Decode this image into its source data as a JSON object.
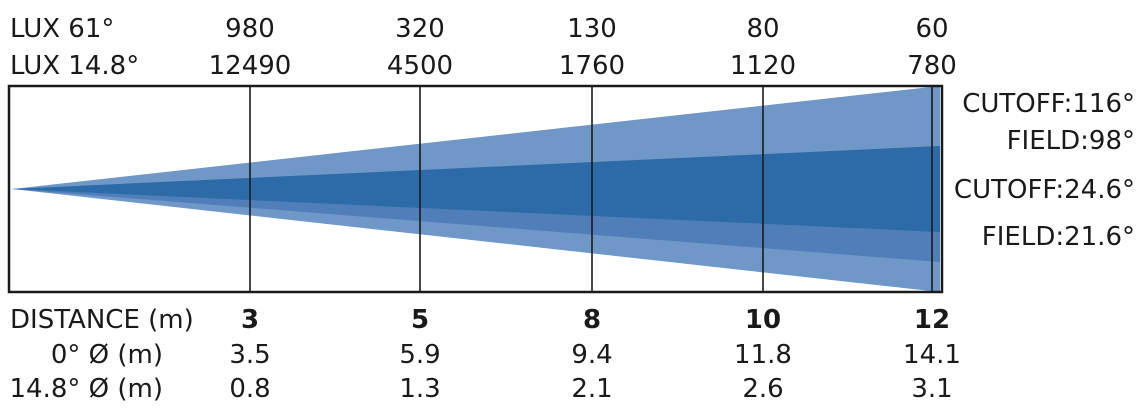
{
  "header_rows": [
    {
      "label": "LUX  61°",
      "values": [
        "980",
        "320",
        "130",
        "80",
        "60"
      ]
    },
    {
      "label": "LUX  14.8°",
      "values": [
        "12490",
        "4500",
        "1760",
        "1120",
        "780"
      ]
    }
  ],
  "beam_labels": {
    "outer_cutoff": "CUTOFF:116°",
    "outer_field": "FIELD:98°",
    "inner_cutoff": "CUTOFF:24.6°",
    "inner_field": "FIELD:21.6°"
  },
  "distance_row": {
    "label": "DISTANCE (m)",
    "values": [
      "3",
      "5",
      "8",
      "10",
      "12"
    ]
  },
  "diameter_rows": [
    {
      "label": "0° Ø (m)",
      "values": [
        "3.5",
        "5.9",
        "9.4",
        "11.8",
        "14.1"
      ]
    },
    {
      "label": "14.8° Ø (m)",
      "values": [
        "0.8",
        "1.3",
        "2.1",
        "2.6",
        "3.1"
      ]
    }
  ],
  "colors": {
    "outer_field": "#6f97c7",
    "inner_field": "#4f7eb8",
    "core_beam": "#2d6aa8",
    "lines": "#1a1a1a"
  }
}
